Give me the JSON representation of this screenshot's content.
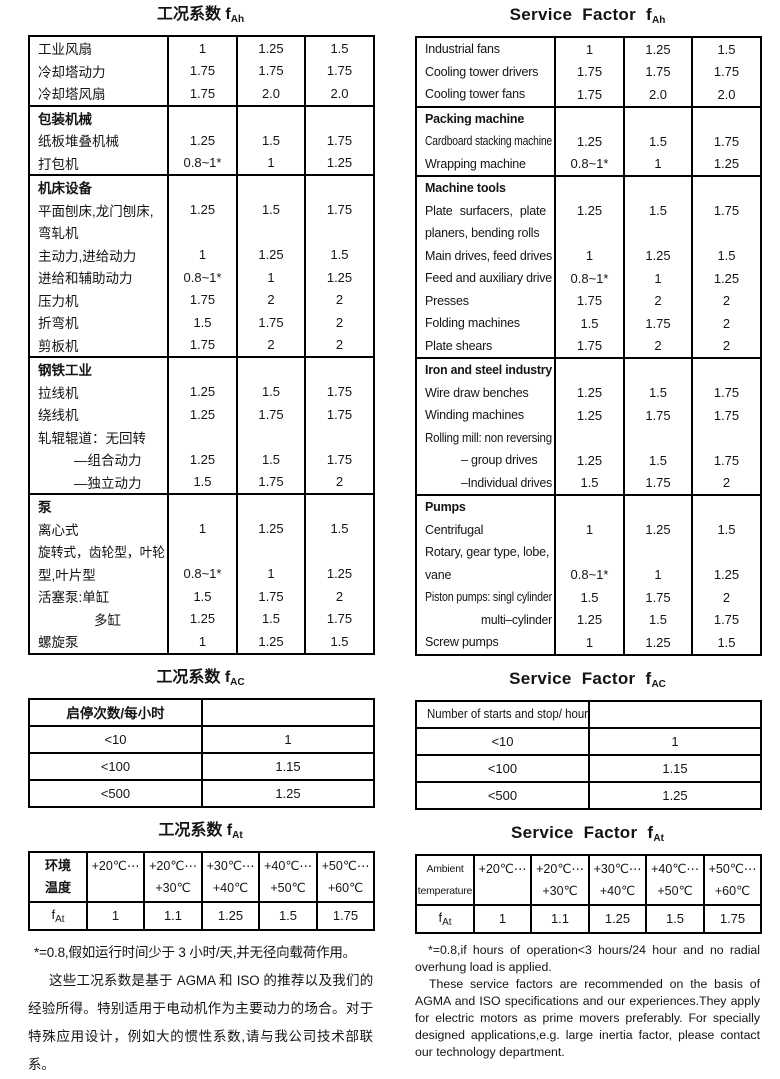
{
  "left": {
    "fah": {
      "title_main": "工况系数 f",
      "title_sub": "Ah",
      "rows": [
        {
          "label": "工业风扇",
          "v": [
            "1",
            "1.25",
            "1.5"
          ]
        },
        {
          "label": "冷却塔动力",
          "v": [
            "1.75",
            "1.75",
            "1.75"
          ]
        },
        {
          "label": "冷却塔风扇",
          "v": [
            "1.75",
            "2.0",
            "2.0"
          ]
        },
        {
          "label": "包装机械",
          "bold": true,
          "sec": true,
          "v": []
        },
        {
          "label": "纸板堆叠机械",
          "v": [
            "1.25",
            "1.5",
            "1.75"
          ]
        },
        {
          "label": "打包机",
          "v": [
            "0.8~1*",
            "1",
            "1.25"
          ]
        },
        {
          "label": "机床设备",
          "bold": true,
          "sec": true,
          "v": []
        },
        {
          "label": "平面刨床,龙门刨床,",
          "v": [
            "1.25",
            "1.5",
            "1.75"
          ]
        },
        {
          "label": "弯轧机",
          "v": []
        },
        {
          "label": "主动力,进给动力",
          "v": [
            "1",
            "1.25",
            "1.5"
          ]
        },
        {
          "label": "进给和辅助动力",
          "v": [
            "0.8~1*",
            "1",
            "1.25"
          ]
        },
        {
          "label": "压力机",
          "v": [
            "1.75",
            "2",
            "2"
          ]
        },
        {
          "label": "折弯机",
          "v": [
            "1.5",
            "1.75",
            "2"
          ]
        },
        {
          "label": "剪板机",
          "v": [
            "1.75",
            "2",
            "2"
          ]
        },
        {
          "label": "钢铁工业",
          "bold": true,
          "sec": true,
          "v": []
        },
        {
          "label": "拉线机",
          "v": [
            "1.25",
            "1.5",
            "1.75"
          ]
        },
        {
          "label": "绕线机",
          "v": [
            "1.25",
            "1.75",
            "1.75"
          ]
        },
        {
          "label": "轧辊辊道：无回转",
          "v": []
        },
        {
          "label": "—组合动力",
          "indent": 1,
          "v": [
            "1.25",
            "1.5",
            "1.75"
          ]
        },
        {
          "label": "—独立动力",
          "indent": 1,
          "v": [
            "1.5",
            "1.75",
            "2"
          ]
        },
        {
          "label": "泵",
          "bold": true,
          "sec": true,
          "v": []
        },
        {
          "label": "离心式",
          "v": [
            "1",
            "1.25",
            "1.5"
          ]
        },
        {
          "label": "旋转式，齿轮型，叶轮",
          "v": []
        },
        {
          "label": "型,叶片型",
          "v": [
            "0.8~1*",
            "1",
            "1.25"
          ]
        },
        {
          "label": "活塞泵:单缸",
          "v": [
            "1.5",
            "1.75",
            "2"
          ]
        },
        {
          "label": "多缸",
          "indent": 2,
          "v": [
            "1.25",
            "1.5",
            "1.75"
          ]
        },
        {
          "label": "螺旋泵",
          "v": [
            "1",
            "1.25",
            "1.5"
          ]
        }
      ]
    },
    "fac": {
      "title_main": "工况系数 f",
      "title_sub": "AC",
      "header": "启停次数/每小时",
      "rows": [
        [
          "<10",
          "1"
        ],
        [
          "<100",
          "1.15"
        ],
        [
          "<500",
          "1.25"
        ]
      ]
    },
    "fat": {
      "title_main": "工况系数 f",
      "title_sub": "At",
      "corner_line1": "环境",
      "corner_line2": "温度",
      "cols": [
        [
          "+20℃⋯",
          ""
        ],
        [
          "+20℃⋯",
          "+30℃"
        ],
        [
          "+30℃⋯",
          "+40℃"
        ],
        [
          "+40℃⋯",
          "+50℃"
        ],
        [
          "+50℃⋯",
          "+60℃"
        ]
      ],
      "row_label_main": "f",
      "row_label_sub": "At",
      "values": [
        "1",
        "1.1",
        "1.25",
        "1.5",
        "1.75"
      ]
    },
    "notes": [
      "*=0.8,假如运行时间少于 3 小时/天,并无径向载荷作用。",
      "这些工况系数是基于 AGMA 和 ISO 的推荐以及我们的经验所得。特别适用于电动机作为主要动力的场合。对于特殊应用设计，例如大的惯性系数,请与我公司技术部联系。"
    ]
  },
  "right": {
    "fah": {
      "title_main": "Service Factor f",
      "title_sub": "Ah",
      "rows": [
        {
          "label": "Industrial fans",
          "v": [
            "1",
            "1.25",
            "1.5"
          ]
        },
        {
          "label": "Cooling tower drivers",
          "v": [
            "1.75",
            "1.75",
            "1.75"
          ]
        },
        {
          "label": "Cooling tower fans",
          "v": [
            "1.75",
            "2.0",
            "2.0"
          ]
        },
        {
          "label": "Packing machine",
          "bold": true,
          "sec": true,
          "v": []
        },
        {
          "label": "Cardboard stacking machine",
          "v": [
            "1.25",
            "1.5",
            "1.75"
          ]
        },
        {
          "label": "Wrapping machine",
          "v": [
            "0.8~1*",
            "1",
            "1.25"
          ]
        },
        {
          "label": "Machine tools",
          "bold": true,
          "sec": true,
          "v": []
        },
        {
          "label": "Plate surfacers, plate",
          "justify": true,
          "v": [
            "1.25",
            "1.5",
            "1.75"
          ]
        },
        {
          "label": "planers, bending rolls",
          "v": []
        },
        {
          "label": "Main drives, feed drives",
          "v": [
            "1",
            "1.25",
            "1.5"
          ]
        },
        {
          "label": "Feed and auxiliary drive",
          "v": [
            "0.8~1*",
            "1",
            "1.25"
          ]
        },
        {
          "label": "Presses",
          "v": [
            "1.75",
            "2",
            "2"
          ]
        },
        {
          "label": "Folding machines",
          "v": [
            "1.5",
            "1.75",
            "2"
          ]
        },
        {
          "label": "Plate shears",
          "v": [
            "1.75",
            "2",
            "2"
          ]
        },
        {
          "label": "Iron and steel industry",
          "bold": true,
          "sec": true,
          "v": []
        },
        {
          "label": "Wire draw benches",
          "v": [
            "1.25",
            "1.5",
            "1.75"
          ]
        },
        {
          "label": "Winding machines",
          "v": [
            "1.25",
            "1.75",
            "1.75"
          ]
        },
        {
          "label": "Rolling mill: non reversing",
          "v": []
        },
        {
          "label": "– group drives",
          "indent": 1,
          "v": [
            "1.25",
            "1.5",
            "1.75"
          ]
        },
        {
          "label": "–Individual drives",
          "indent": 1,
          "v": [
            "1.5",
            "1.75",
            "2"
          ]
        },
        {
          "label": "Pumps",
          "bold": true,
          "sec": true,
          "v": []
        },
        {
          "label": "Centrifugal",
          "v": [
            "1",
            "1.25",
            "1.5"
          ]
        },
        {
          "label": "Rotary, gear type, lobe,",
          "v": []
        },
        {
          "label": "vane",
          "v": [
            "0.8~1*",
            "1",
            "1.25"
          ]
        },
        {
          "label": "Piston pumps: singl cylinder",
          "v": [
            "1.5",
            "1.75",
            "2"
          ]
        },
        {
          "label": "multi–cylinder",
          "indent": 2,
          "v": [
            "1.25",
            "1.5",
            "1.75"
          ]
        },
        {
          "label": "Screw pumps",
          "v": [
            "1",
            "1.25",
            "1.5"
          ]
        }
      ]
    },
    "fac": {
      "title_main": "Service Factor f",
      "title_sub": "AC",
      "header": "Number of starts and stop/ hour",
      "rows": [
        [
          "<10",
          "1"
        ],
        [
          "<100",
          "1.15"
        ],
        [
          "<500",
          "1.25"
        ]
      ]
    },
    "fat": {
      "title_main": "Service Factor f",
      "title_sub": "At",
      "corner_line1": "Ambient",
      "corner_line2": "temperature",
      "cols": [
        [
          "+20℃⋯",
          ""
        ],
        [
          "+20℃⋯",
          "+30℃"
        ],
        [
          "+30℃⋯",
          "+40℃"
        ],
        [
          "+40℃⋯",
          "+50℃"
        ],
        [
          "+50℃⋯",
          "+60℃"
        ]
      ],
      "row_label_main": "f",
      "row_label_sub": "At",
      "values": [
        "1",
        "1.1",
        "1.25",
        "1.5",
        "1.75"
      ]
    },
    "notes": [
      "*=0.8,if hours of operation<3 hours/24 hour and no radial overhung load is applied.",
      "These service factors are recommended on the basis of AGMA and ISO specifications and our experiences.They apply for electric motors as prime movers preferably. For specially designed applications,e.g. large inertia factor, please contact our technology department."
    ]
  }
}
